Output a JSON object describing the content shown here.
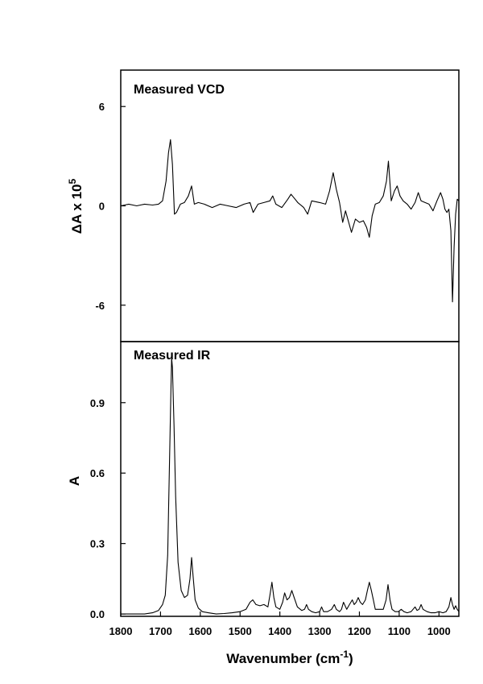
{
  "chart_data": [
    {
      "type": "line",
      "title": "Measured VCD",
      "ylabel": "ΔA x 10",
      "ylabel_exponent": "5",
      "xlim": [
        1800,
        950
      ],
      "ylim": [
        -8.2,
        8.2
      ],
      "yticks": [
        6,
        0,
        -6
      ],
      "ytick_labels": [
        "6",
        "0",
        "-6"
      ],
      "grid": false,
      "series": [
        {
          "x": [
            1800,
            1780,
            1760,
            1740,
            1720,
            1705,
            1695,
            1686,
            1680,
            1675,
            1670,
            1665,
            1660,
            1650,
            1640,
            1630,
            1622,
            1615,
            1605,
            1590,
            1570,
            1550,
            1530,
            1510,
            1490,
            1475,
            1467,
            1455,
            1440,
            1425,
            1418,
            1410,
            1395,
            1380,
            1372,
            1365,
            1355,
            1340,
            1330,
            1320,
            1300,
            1285,
            1275,
            1266,
            1258,
            1250,
            1242,
            1235,
            1228,
            1220,
            1210,
            1200,
            1190,
            1182,
            1175,
            1168,
            1160,
            1150,
            1140,
            1132,
            1127,
            1120,
            1112,
            1105,
            1098,
            1090,
            1080,
            1070,
            1060,
            1052,
            1045,
            1035,
            1025,
            1015,
            1005,
            996,
            990,
            985,
            980,
            975,
            970,
            966,
            962,
            958,
            954,
            950
          ],
          "values": [
            0,
            0.1,
            0.0,
            0.1,
            0.05,
            0.1,
            0.3,
            1.5,
            3.2,
            4.0,
            2.5,
            -0.5,
            -0.4,
            0.1,
            0.2,
            0.6,
            1.2,
            0.1,
            0.2,
            0.1,
            -0.1,
            0.1,
            0.0,
            -0.1,
            0.1,
            0.2,
            -0.4,
            0.1,
            0.2,
            0.3,
            0.6,
            0.1,
            -0.1,
            0.4,
            0.7,
            0.5,
            0.2,
            -0.1,
            -0.5,
            0.3,
            0.2,
            0.1,
            0.9,
            2.0,
            1.0,
            0.2,
            -1.0,
            -0.3,
            -0.9,
            -1.6,
            -0.8,
            -1.0,
            -0.9,
            -1.3,
            -1.9,
            -0.6,
            0.1,
            0.2,
            0.6,
            1.5,
            2.7,
            0.3,
            0.9,
            1.2,
            0.6,
            0.3,
            0.1,
            -0.2,
            0.2,
            0.8,
            0.3,
            0.2,
            0.1,
            -0.3,
            0.3,
            0.8,
            0.4,
            -0.2,
            -0.4,
            -0.2,
            -1.5,
            -5.8,
            -2.5,
            -0.5,
            0.4,
            0.3
          ]
        }
      ]
    },
    {
      "type": "line",
      "title": "Measured IR",
      "ylabel": "A",
      "xlabel": "Wavenumber (cm",
      "xlabel_exponent": "-1",
      "xlabel_suffix": ")",
      "xlim": [
        1800,
        950
      ],
      "ylim": [
        -0.01,
        1.16
      ],
      "xticks": [
        1800,
        1700,
        1600,
        1500,
        1400,
        1300,
        1200,
        1100,
        1000
      ],
      "xtick_labels": [
        "1800",
        "1700",
        "1600",
        "1500",
        "1400",
        "1300",
        "1200",
        "1100",
        "1000"
      ],
      "yticks": [
        0.0,
        0.3,
        0.6,
        0.9
      ],
      "ytick_labels": [
        "0.0",
        "0.3",
        "0.6",
        "0.9"
      ],
      "grid": false,
      "series": [
        {
          "x": [
            1800,
            1780,
            1760,
            1740,
            1720,
            1705,
            1695,
            1688,
            1682,
            1678,
            1674,
            1672,
            1670,
            1666,
            1662,
            1656,
            1648,
            1640,
            1632,
            1626,
            1622,
            1618,
            1613,
            1605,
            1595,
            1580,
            1560,
            1540,
            1520,
            1500,
            1485,
            1475,
            1468,
            1460,
            1450,
            1440,
            1430,
            1425,
            1420,
            1415,
            1410,
            1400,
            1393,
            1388,
            1382,
            1376,
            1370,
            1364,
            1356,
            1345,
            1338,
            1333,
            1328,
            1320,
            1310,
            1300,
            1295,
            1290,
            1280,
            1270,
            1263,
            1258,
            1250,
            1245,
            1240,
            1232,
            1225,
            1218,
            1213,
            1208,
            1203,
            1198,
            1192,
            1185,
            1180,
            1175,
            1170,
            1165,
            1160,
            1150,
            1140,
            1133,
            1128,
            1123,
            1118,
            1110,
            1102,
            1095,
            1088,
            1080,
            1070,
            1060,
            1055,
            1050,
            1045,
            1040,
            1030,
            1020,
            1010,
            1000,
            990,
            982,
            975,
            970,
            966,
            962,
            958,
            954,
            950
          ],
          "values": [
            0.0,
            0.0,
            0.0,
            0.0,
            0.005,
            0.015,
            0.04,
            0.08,
            0.25,
            0.6,
            0.95,
            1.09,
            1.05,
            0.8,
            0.5,
            0.22,
            0.1,
            0.07,
            0.08,
            0.15,
            0.24,
            0.16,
            0.06,
            0.025,
            0.01,
            0.005,
            0.0,
            0.002,
            0.005,
            0.01,
            0.02,
            0.05,
            0.06,
            0.04,
            0.035,
            0.04,
            0.03,
            0.08,
            0.135,
            0.07,
            0.03,
            0.02,
            0.05,
            0.09,
            0.06,
            0.07,
            0.1,
            0.07,
            0.03,
            0.015,
            0.02,
            0.04,
            0.02,
            0.01,
            0.005,
            0.01,
            0.03,
            0.01,
            0.01,
            0.02,
            0.04,
            0.02,
            0.01,
            0.02,
            0.05,
            0.02,
            0.04,
            0.06,
            0.04,
            0.05,
            0.07,
            0.05,
            0.04,
            0.06,
            0.1,
            0.135,
            0.1,
            0.06,
            0.02,
            0.02,
            0.02,
            0.06,
            0.125,
            0.06,
            0.02,
            0.01,
            0.01,
            0.02,
            0.01,
            0.005,
            0.01,
            0.03,
            0.015,
            0.02,
            0.04,
            0.02,
            0.01,
            0.005,
            0.005,
            0.01,
            0.005,
            0.01,
            0.03,
            0.07,
            0.04,
            0.02,
            0.035,
            0.02,
            0.01
          ]
        }
      ]
    }
  ]
}
